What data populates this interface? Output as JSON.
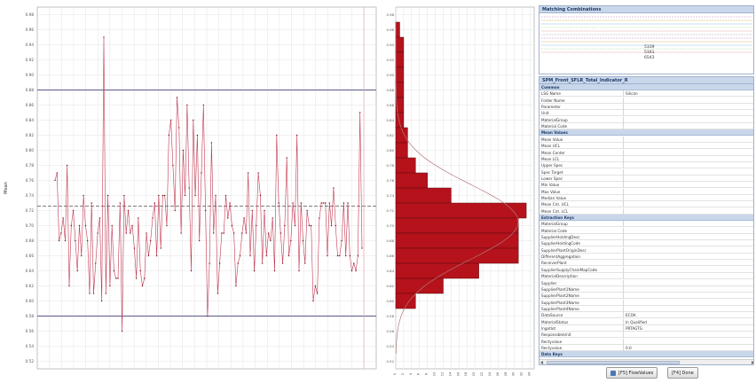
{
  "main_chart": {
    "ylabel": "Mean",
    "y_ticks": [
      "0.98",
      "0.96",
      "0.94",
      "0.92",
      "0.90",
      "0.88",
      "0.86",
      "0.84",
      "0.82",
      "0.80",
      "0.78",
      "0.76",
      "0.74",
      "0.72",
      "0.70",
      "0.68",
      "0.66",
      "0.64",
      "0.62",
      "0.60",
      "0.58",
      "0.56",
      "0.54",
      "0.52"
    ]
  },
  "histogram": {
    "y_ticks": [
      "0.98",
      "0.96",
      "0.94",
      "0.92",
      "0.90",
      "0.88",
      "0.86",
      "0.84",
      "0.82",
      "0.80",
      "0.78",
      "0.76",
      "0.74",
      "0.72",
      "0.70",
      "0.68",
      "0.66",
      "0.64",
      "0.62",
      "0.60",
      "0.58",
      "0.56",
      "0.54",
      "0.52"
    ],
    "x_ticks": [
      "0",
      "2",
      "4",
      "6",
      "8",
      "10",
      "12",
      "14",
      "16",
      "18",
      "20",
      "22",
      "24",
      "26",
      "28",
      "30",
      "32",
      "34"
    ]
  },
  "chart_data": [
    {
      "type": "line",
      "ylabel": "Mean",
      "ylim": [
        0.51,
        0.99
      ],
      "grid": true,
      "reference_lines": {
        "upper_limit": 0.88,
        "lower_limit": 0.58,
        "center": 0.726
      },
      "series": [
        {
          "values": [
            0.76,
            0.77,
            0.68,
            0.69,
            0.71,
            0.68,
            0.78,
            0.62,
            0.7,
            0.72,
            0.68,
            0.64,
            0.7,
            0.66,
            0.74,
            0.7,
            0.68,
            0.61,
            0.73,
            0.61,
            0.65,
            0.69,
            0.71,
            0.6,
            0.95,
            0.61,
            0.74,
            0.62,
            0.7,
            0.64,
            0.63,
            0.63,
            0.73,
            0.56,
            0.74,
            0.69,
            0.72,
            0.69,
            0.7,
            0.67,
            0.63,
            0.71,
            0.64,
            0.62,
            0.63,
            0.69,
            0.66,
            0.68,
            0.71,
            0.73,
            0.66,
            0.74,
            0.67,
            0.74,
            0.74,
            0.7,
            0.82,
            0.84,
            0.78,
            0.72,
            0.87,
            0.83,
            0.69,
            0.8,
            0.74,
            0.86,
            0.75,
            0.64,
            0.84,
            0.74,
            0.82,
            0.68,
            0.77,
            0.86,
            0.72,
            0.58,
            0.65,
            0.81,
            0.69,
            0.74,
            0.61,
            0.65,
            0.69,
            0.69,
            0.74,
            0.71,
            0.73,
            0.7,
            0.69,
            0.62,
            0.65,
            0.66,
            0.69,
            0.71,
            0.69,
            0.77,
            0.66,
            0.72,
            0.64,
            0.7,
            0.77,
            0.74,
            0.65,
            0.72,
            0.66,
            0.69,
            0.68,
            0.71,
            0.64,
            0.82,
            0.73,
            0.69,
            0.65,
            0.7,
            0.79,
            0.66,
            0.68,
            0.73,
            0.7,
            0.82,
            0.64,
            0.73,
            0.68,
            0.65,
            0.72,
            0.7,
            0.7,
            0.6,
            0.62,
            0.61,
            0.71,
            0.73,
            0.73,
            0.73,
            0.66,
            0.73,
            0.7,
            0.75,
            0.7,
            0.66,
            0.66,
            0.68,
            0.73,
            0.66,
            0.73,
            0.66,
            0.64,
            0.65,
            0.64,
            0.66,
            0.85,
            0.67
          ]
        }
      ]
    },
    {
      "type": "bar",
      "orientation": "horizontal",
      "bins": [
        0.96,
        0.94,
        0.92,
        0.9,
        0.88,
        0.86,
        0.84,
        0.82,
        0.8,
        0.78,
        0.76,
        0.74,
        0.72,
        0.7,
        0.68,
        0.66,
        0.64,
        0.62,
        0.6
      ],
      "values": [
        1,
        2,
        2,
        2,
        2,
        2,
        2,
        3,
        3,
        5,
        8,
        14,
        33,
        31,
        31,
        31,
        21,
        12,
        5
      ],
      "xlim": [
        0,
        35
      ]
    }
  ],
  "matching": {
    "title": "Matching Combinations",
    "labels": [
      "5339",
      "5161",
      "6543"
    ],
    "colors": [
      "#d9b3e3",
      "#e8d2a0",
      "#b9d9ee",
      "#c8e6c0",
      "#f2c4c4",
      "#d6d6d6"
    ]
  },
  "props": {
    "title": "SPM_Front_SFLR_Total_Indicator_R",
    "rows": [
      {
        "k": "Common",
        "v": "",
        "sec": true
      },
      {
        "k": "LSG Name",
        "v": "Silicon",
        "sec": false
      },
      {
        "k": "Folder Name",
        "v": "",
        "sec": false
      },
      {
        "k": "Parameter",
        "v": "",
        "sec": false
      },
      {
        "k": "Unit",
        "v": "",
        "sec": false
      },
      {
        "k": "MaterialGroup",
        "v": "",
        "sec": false
      },
      {
        "k": "Material Code",
        "v": "",
        "sec": false
      },
      {
        "k": "Mean Values",
        "v": "",
        "sec": true
      },
      {
        "k": "Mean Value",
        "v": "",
        "sec": false
      },
      {
        "k": "Mean UCL",
        "v": "",
        "sec": false
      },
      {
        "k": "Mean Center",
        "v": "",
        "sec": false
      },
      {
        "k": "Mean LCL",
        "v": "",
        "sec": false
      },
      {
        "k": "Upper Spec",
        "v": "",
        "sec": false
      },
      {
        "k": "Spec Target",
        "v": "",
        "sec": false
      },
      {
        "k": "Lower Spec",
        "v": "",
        "sec": false
      },
      {
        "k": "Min Value",
        "v": "",
        "sec": false
      },
      {
        "k": "Max Value",
        "v": "",
        "sec": false
      },
      {
        "k": "Median Value",
        "v": "",
        "sec": false
      },
      {
        "k": "Mean Cnt. UCL",
        "v": "",
        "sec": false
      },
      {
        "k": "Mean Cnt. LCL",
        "v": "",
        "sec": false
      },
      {
        "k": "Extraction Keys",
        "v": "",
        "sec": true
      },
      {
        "k": "MaterialGroup",
        "v": "",
        "sec": false
      },
      {
        "k": "Material Code",
        "v": "",
        "sec": false
      },
      {
        "k": "SupplierHoldingDesc",
        "v": "",
        "sec": false
      },
      {
        "k": "SupplierHoldingCode",
        "v": "",
        "sec": false
      },
      {
        "k": "SupplierPlantOriginDesc",
        "v": "",
        "sec": false
      },
      {
        "k": "DifferentAggregation",
        "v": "",
        "sec": false
      },
      {
        "k": "ReceiverPlant",
        "v": "",
        "sec": false
      },
      {
        "k": "SupplierSupplyChainMapCode",
        "v": "",
        "sec": false
      },
      {
        "k": "MaterialDescription",
        "v": "",
        "sec": false
      },
      {
        "k": "Supplier",
        "v": "",
        "sec": false
      },
      {
        "k": "SupplierPlant1Name",
        "v": "",
        "sec": false
      },
      {
        "k": "SupplierPlant2Name",
        "v": "",
        "sec": false
      },
      {
        "k": "SupplierPlant3Name",
        "v": "",
        "sec": false
      },
      {
        "k": "SupplierPlant4Name",
        "v": "",
        "sec": false
      },
      {
        "k": "DataSource",
        "v": "ECOA",
        "sec": false
      },
      {
        "k": "MaterialStatus",
        "v": "In Qualified",
        "sec": false
      },
      {
        "k": "Ingotlot",
        "v": "PRTAGTG",
        "sec": false
      },
      {
        "k": "ResponsibleUnit",
        "v": "",
        "sec": false
      },
      {
        "k": "Rectyvalue",
        "v": "",
        "sec": false
      },
      {
        "k": "Rectyvalue",
        "v": "0.0",
        "sec": false
      },
      {
        "k": "Data Keys",
        "v": "",
        "sec": true
      }
    ]
  },
  "buttons": {
    "flow_values": "[F5] FlowValues",
    "done": "[F4] Done"
  }
}
